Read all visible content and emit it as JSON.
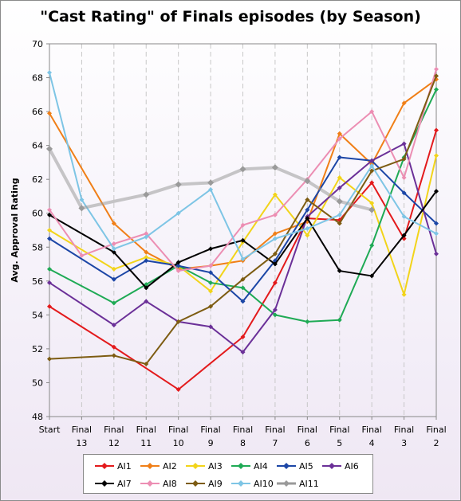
{
  "chart_data": {
    "type": "line",
    "title": "\"Cast Rating\" of Finals episodes (by Season)",
    "ylabel": "Avg. Approval Rating",
    "ylim": [
      48,
      70
    ],
    "yticks": [
      48,
      50,
      52,
      54,
      56,
      58,
      60,
      62,
      64,
      66,
      68,
      70
    ],
    "grid": "vertical dashed",
    "legend_position": "bottom",
    "categories": [
      [
        "Start"
      ],
      [
        "Final",
        "13"
      ],
      [
        "Final",
        "12"
      ],
      [
        "Final",
        "11"
      ],
      [
        "Final",
        "10"
      ],
      [
        "Final",
        "9"
      ],
      [
        "Final",
        "8"
      ],
      [
        "Final",
        "7"
      ],
      [
        "Final",
        "6"
      ],
      [
        "Final",
        "5"
      ],
      [
        "Final",
        "4"
      ],
      [
        "Final",
        "3"
      ],
      [
        "Final",
        "2"
      ]
    ],
    "series": [
      {
        "name": "AI1",
        "color": "#e31a1c",
        "values": [
          54.5,
          null,
          52.1,
          null,
          49.6,
          null,
          52.7,
          55.9,
          59.7,
          59.6,
          61.8,
          58.5,
          64.9
        ]
      },
      {
        "name": "AI2",
        "color": "#f07f17",
        "values": [
          65.9,
          null,
          59.4,
          57.7,
          56.7,
          56.9,
          57.2,
          58.8,
          59.5,
          64.7,
          62.9,
          66.5,
          67.9
        ]
      },
      {
        "name": "AI3",
        "color": "#f2d41a",
        "values": [
          59.0,
          null,
          56.7,
          57.4,
          56.9,
          55.4,
          58.3,
          61.1,
          58.7,
          62.1,
          60.6,
          55.2,
          63.4
        ]
      },
      {
        "name": "AI4",
        "color": "#1faa55",
        "values": [
          56.7,
          null,
          54.7,
          55.8,
          56.9,
          55.9,
          55.6,
          54.0,
          53.6,
          53.7,
          58.1,
          63.3,
          67.3
        ]
      },
      {
        "name": "AI5",
        "color": "#1c46a6",
        "values": [
          58.5,
          null,
          56.1,
          57.2,
          56.9,
          56.5,
          54.8,
          57.2,
          60.2,
          63.3,
          63.1,
          61.2,
          59.4
        ]
      },
      {
        "name": "AI6",
        "color": "#6b3098",
        "values": [
          55.9,
          null,
          53.4,
          54.8,
          53.6,
          53.3,
          51.8,
          54.3,
          59.8,
          61.5,
          63.1,
          64.1,
          57.6
        ]
      },
      {
        "name": "AI7",
        "color": "#000000",
        "values": [
          59.9,
          null,
          57.7,
          55.6,
          57.1,
          57.9,
          58.4,
          57.0,
          59.7,
          56.6,
          56.3,
          58.7,
          61.3
        ]
      },
      {
        "name": "AI8",
        "color": "#ec8eb3",
        "values": [
          60.2,
          57.5,
          58.2,
          58.8,
          56.6,
          56.9,
          59.3,
          59.9,
          62.0,
          64.4,
          66.0,
          62.1,
          68.5
        ]
      },
      {
        "name": "AI9",
        "color": "#7d5c12",
        "values": [
          51.4,
          null,
          51.6,
          51.1,
          53.6,
          54.5,
          56.1,
          57.6,
          60.8,
          59.4,
          62.5,
          63.2,
          68.1
        ]
      },
      {
        "name": "AI10",
        "color": "#7ec5e5",
        "values": [
          68.3,
          60.8,
          57.9,
          58.6,
          60.0,
          61.4,
          57.3,
          58.5,
          59.1,
          59.9,
          62.8,
          59.8,
          58.8
        ]
      },
      {
        "name": "AI11",
        "color": "#9a9a9a",
        "values": [
          63.8,
          60.3,
          null,
          61.1,
          61.7,
          61.8,
          62.6,
          62.7,
          61.9,
          60.7,
          60.2,
          null,
          null
        ]
      }
    ]
  }
}
